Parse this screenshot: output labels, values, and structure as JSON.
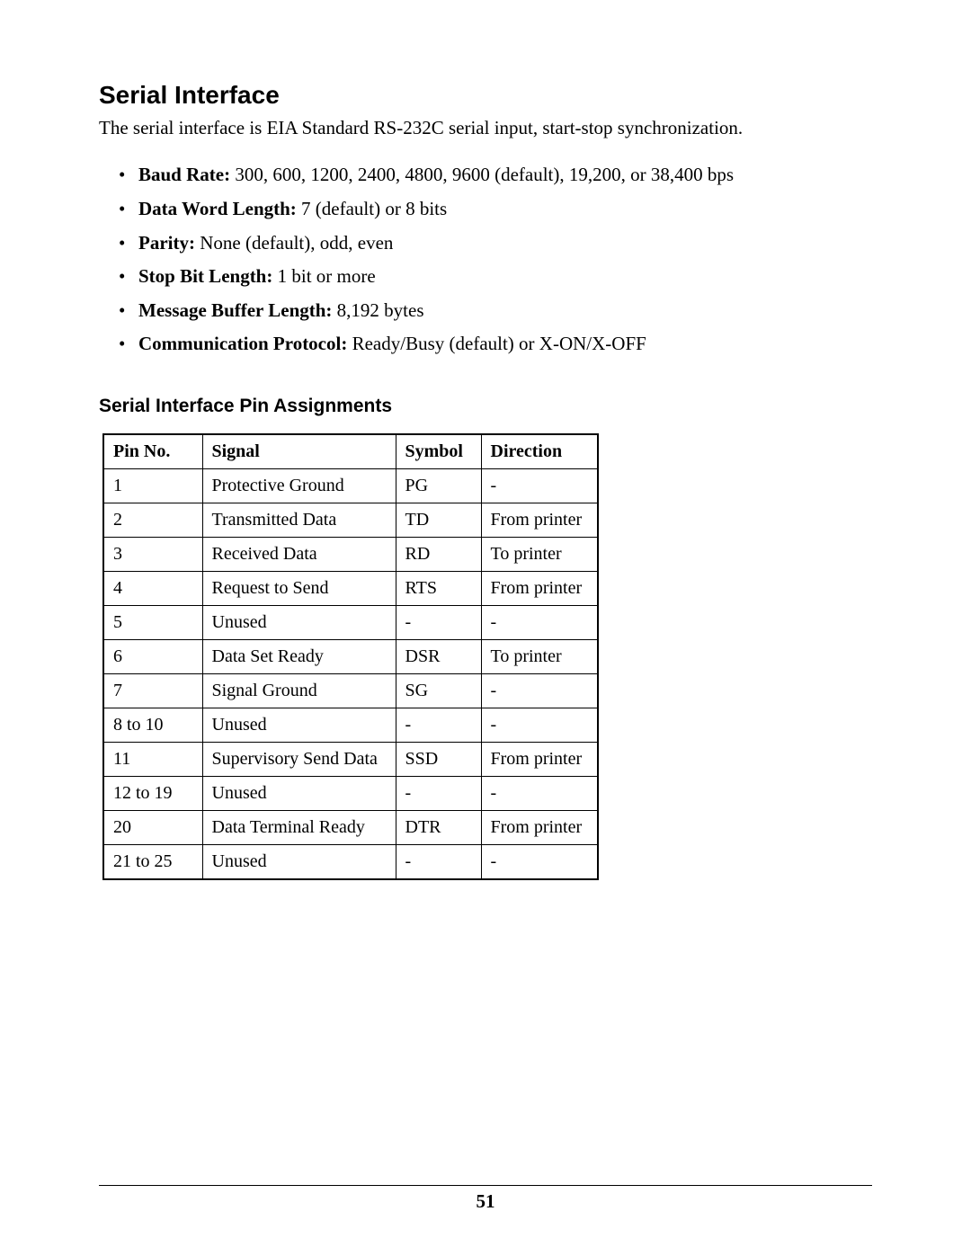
{
  "heading": "Serial Interface",
  "intro": "The serial interface is EIA Standard RS-232C serial input, start-stop synchronization.",
  "specs": [
    {
      "label": "Baud Rate:",
      "value": " 300, 600, 1200, 2400, 4800, 9600 (default), 19,200, or 38,400 bps"
    },
    {
      "label": "Data Word Length:",
      "value": " 7 (default) or 8 bits"
    },
    {
      "label": "Parity:",
      "value": " None (default), odd, even"
    },
    {
      "label": "Stop Bit Length:",
      "value": " 1 bit or more"
    },
    {
      "label": "Message Buffer Length:",
      "value": " 8,192 bytes"
    },
    {
      "label": "Communication Protocol:",
      "value": " Ready/Busy (default) or X-ON/X-OFF"
    }
  ],
  "subheading": "Serial Interface Pin Assignments",
  "table": {
    "columns": [
      "Pin No.",
      "Signal",
      "Symbol",
      "Direction"
    ],
    "rows": [
      [
        "1",
        "Protective Ground",
        "PG",
        "-"
      ],
      [
        "2",
        "Transmitted Data",
        "TD",
        "From printer"
      ],
      [
        "3",
        "Received Data",
        "RD",
        "To printer"
      ],
      [
        "4",
        "Request to Send",
        "RTS",
        "From printer"
      ],
      [
        "5",
        "Unused",
        "-",
        "-"
      ],
      [
        "6",
        "Data Set Ready",
        "DSR",
        "To printer"
      ],
      [
        "7",
        "Signal Ground",
        "SG",
        "-"
      ],
      [
        "8 to 10",
        "Unused",
        "-",
        "-"
      ],
      [
        "11",
        "Supervisory Send Data",
        "SSD",
        "From printer"
      ],
      [
        "12 to 19",
        "Unused",
        "-",
        "-"
      ],
      [
        "20",
        "Data Terminal Ready",
        "DTR",
        "From printer"
      ],
      [
        "21 to 25",
        "Unused",
        "-",
        "-"
      ]
    ]
  },
  "page_number": "51"
}
